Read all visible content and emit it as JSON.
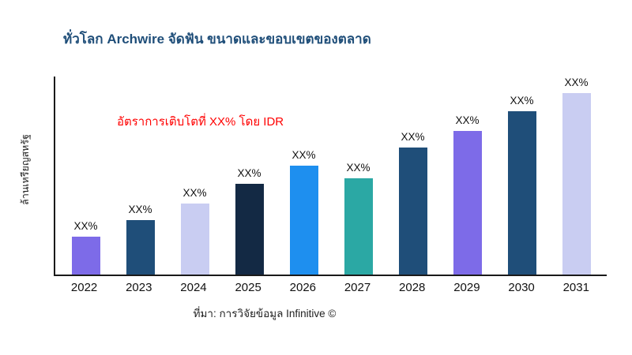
{
  "title": "ทั่วโลก Archwire จัดฟัน ขนาดและขอบเขตของตลาด",
  "y_axis_label": "ล้านเหรียญสหรัฐ",
  "growth_note": "อัตราการเติบโตที่ XX% โดย IDR",
  "source": "ที่มา: การวิจัยข้อมูล Infinitive ©",
  "colors": {
    "title": "#1F4E79",
    "growth_note": "#FF0000",
    "axis": "#1a1a1a",
    "background": "#ffffff"
  },
  "chart_data": {
    "type": "bar",
    "title": "ทั่วโลก Archwire จัดฟัน ขนาดและขอบเขตของตลาด",
    "xlabel": "",
    "ylabel": "ล้านเหรียญสหรัฐ",
    "categories": [
      "2022",
      "2023",
      "2024",
      "2025",
      "2026",
      "2027",
      "2028",
      "2029",
      "2030",
      "2031"
    ],
    "values": [
      21,
      30,
      39,
      50,
      60,
      53,
      70,
      79,
      90,
      100
    ],
    "ylim": [
      0,
      110
    ],
    "value_note": "bars labeled XX% (placeholder values); heights estimated as % of tallest bar",
    "bar_labels": [
      "XX%",
      "XX%",
      "XX%",
      "XX%",
      "XX%",
      "XX%",
      "XX%",
      "XX%",
      "XX%",
      "XX%"
    ],
    "bar_colors": [
      "#7D6BE8",
      "#1F4E79",
      "#C9CDF2",
      "#132944",
      "#1E8FEF",
      "#2BA8A4",
      "#1F4E79",
      "#7D6BE8",
      "#1F4E79",
      "#C9CDF2"
    ],
    "grid": false,
    "legend": false
  }
}
